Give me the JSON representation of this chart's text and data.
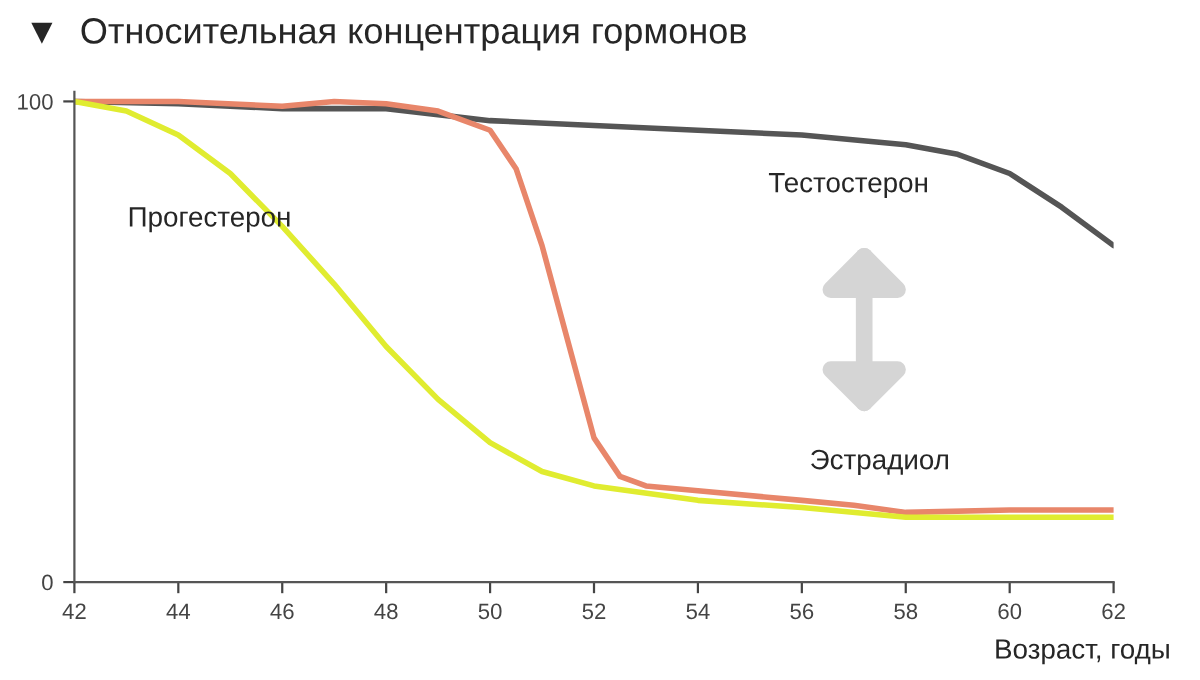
{
  "chart_data": {
    "type": "line",
    "title": "▼  Относительная концентрация гормонов",
    "xlabel": "Возраст, годы",
    "xlim": [
      42,
      62
    ],
    "xticks": [
      42,
      44,
      46,
      48,
      50,
      52,
      54,
      56,
      58,
      60,
      62
    ],
    "ylim": [
      0,
      102
    ],
    "yticks": [
      0,
      100
    ],
    "grid": false,
    "legend": false,
    "marker": "none",
    "line_style": "solid",
    "series": [
      {
        "name": "Тестостерон",
        "color": "#555555",
        "x": [
          42,
          44,
          46,
          48,
          50,
          52,
          54,
          56,
          58,
          59,
          60,
          61,
          62
        ],
        "values": [
          100,
          99.5,
          98.5,
          98.5,
          96,
          95,
          94,
          93,
          91,
          89,
          85,
          78,
          70
        ]
      },
      {
        "name": "Эстрадиол",
        "color": "#e8866a",
        "x": [
          42,
          44,
          46,
          47,
          48,
          49,
          50,
          50.5,
          51,
          51.5,
          52,
          52.5,
          53,
          54,
          56,
          57,
          58,
          60,
          62
        ],
        "values": [
          100,
          100,
          99,
          100,
          99.5,
          98,
          94,
          86,
          70,
          50,
          30,
          22,
          20,
          19,
          17,
          16,
          14.5,
          15,
          15
        ]
      },
      {
        "name": "Прогестерон",
        "color": "#e0ec30",
        "x": [
          42,
          43,
          44,
          45,
          46,
          47,
          48,
          49,
          50,
          51,
          52,
          54,
          56,
          58,
          60,
          62
        ],
        "values": [
          100,
          98,
          93,
          85,
          74,
          62,
          49,
          38,
          29,
          23,
          20,
          17,
          15.5,
          13.5,
          13.5,
          13.5
        ]
      }
    ]
  }
}
